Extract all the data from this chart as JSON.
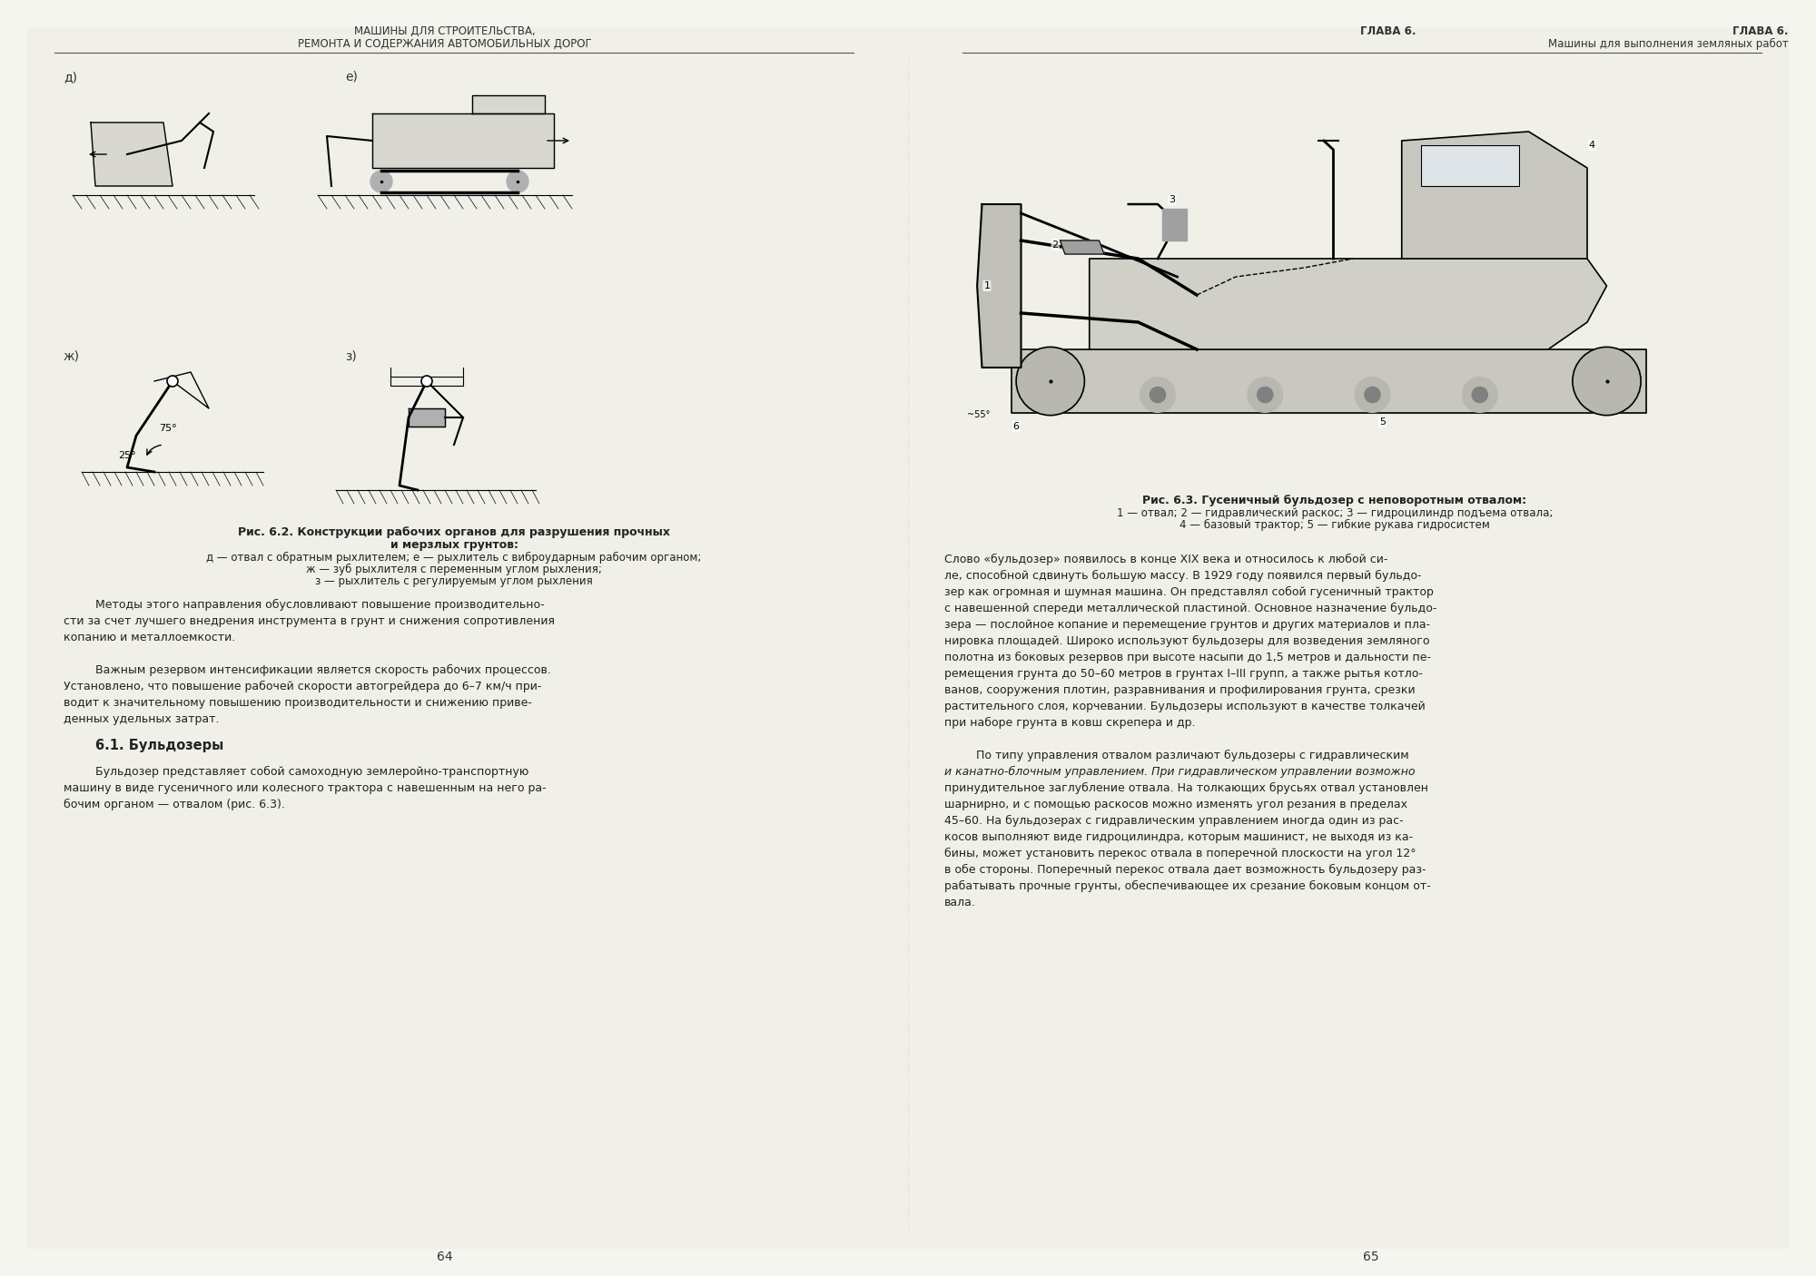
{
  "background_color": "#f5f5f0",
  "page_background": "#f0efe8",
  "left_header_line1": "МАШИНЫ ДЛЯ СТРОИТЕЛЬСТВА,",
  "left_header_line2": "РЕМОНТА И СОДЕРЖАНИЯ АВТОМОБИЛЬНЫХ ДОРОГ",
  "right_header_line1": "ГЛАВА 6.",
  "right_header_line2": "Машины для выполнения земляных работ",
  "page_left": "64",
  "page_right": "65",
  "fig62_title_bold": "Рис. 6.2. Конструкции рабочих органов для разрушения прочных",
  "fig62_title2": "и мерзлых грунтов:",
  "fig62_caption1": "д — отвал с обратным рыхлителем; е — рыхлитель с виброударным рабочим органом;",
  "fig62_caption2": "ж — зуб рыхлителя с переменным углом рыхления;",
  "fig62_caption3": "з — рыхлитель с регулируемым углом рыхления",
  "fig63_title_bold": "Рис. 6.3. Гусеничный бульдозер с неповоротным отвалом:",
  "fig63_caption": "1 — отвал; 2 — гидравлический раскос; 3 — гидроцилиндр подъема отвала;\n4 — базовый трактор; 5 — гибкие рукава гидросистем",
  "section_title": "6.1. Бульдозеры",
  "left_paragraphs": [
    "Методы этого направления обусловливают повышение производительно-сти за счет лучшего внедрения инструмента в грунт и снижения сопротивления копанию и металлоемкости.",
    "Важным резервом интенсификации является скорость рабочих процессов. Установлено, что повышение рабочей скорости автогрейдера до 6–7 км/ч при-водит к значительному повышению производительности и снижению приве-денных удельных затрат.",
    "Бульдозер представляет собой самоходную землеройно-транспортную машину в виде гусеничного или колесного трактора с навешенным на него рабочим органом — отвалом (рис. 6.3)."
  ],
  "right_paragraphs": [
    "Слово «бульдозер» появилось в конце XIX века и относилось к любой си-ле, способной сдвинуть большую массу. В 1929 году появился первый бульдо-зер как огромная и шумная машина. Он представлял собой гусеничный трактор с навешенной спереди металлической пластиной. Основное назначение бульдо-зера — послойное копание и перемещение грунтов и других материалов и пла-нировка площадей. Широко используют бульдозеры для возведения земляного полотна из боковых резервов при высоте насыпи до 1,5 метров и дальности пе-ремещения грунта до 50–60 метров в грунтах I–III групп, а также рытья котло-ванов, сооружения плотин, разравнивания и профилирования грунта, срезки растительного слоя, корчевании. Бульдозеры используют в качестве толкачей при наборе грунта в ковш скрепера и др.",
    "По типу управления отвалом различают бульдозеры с гидравлическим и канатно-блочным управлением. При гидравлическом управлении возможно принудительное заглубление отвала. На толкающих брусьях отвал установлен шарнирно, и с помощью раскосов можно изменять угол резания в пределах 45–60. На бульдозерах с гидравлическим управлением иногда один из рас-косов выполняют виде гидроцилиндра, которым машинист, не выходя из ка-бины, может установить перекос отвала в поперечной плоскости на угол 12° в обе стороны. Поперечный перекос отвала дает возможность бульдозеру раз-рабатывать прочные грунты, обеспечивающее их срезание боковым концом от-вала."
  ],
  "label_d": "д)",
  "label_e": "е)",
  "label_zh": "ж)",
  "label_z": "з)"
}
